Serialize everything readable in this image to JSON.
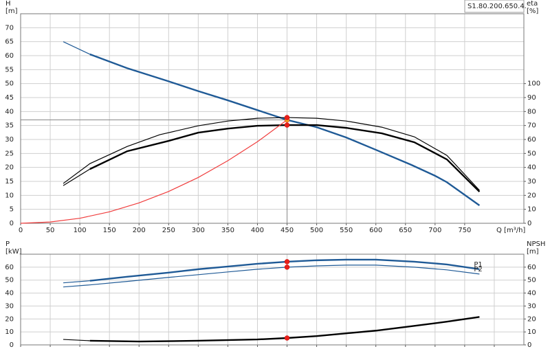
{
  "chart_data": [
    {
      "type": "line",
      "annotation": "S1.80.200.650.4.",
      "ylabel": "H",
      "yunit": "[m]",
      "y2label": "eta",
      "y2unit": "[%]",
      "xlabel": "Q [m³/h]",
      "xlim": [
        0,
        850
      ],
      "xticks": [
        0,
        50,
        100,
        150,
        200,
        250,
        300,
        350,
        400,
        450,
        500,
        550,
        600,
        650,
        700,
        750
      ],
      "xtick_labels": true,
      "ylim": [
        0,
        75
      ],
      "yticks": [
        0,
        5,
        10,
        15,
        20,
        25,
        30,
        35,
        40,
        45,
        50,
        55,
        60,
        65,
        70
      ],
      "y2lim": [
        0,
        150
      ],
      "y2ticks": [
        0,
        10,
        20,
        30,
        40,
        50,
        60,
        70,
        80,
        90,
        100
      ],
      "grid": true,
      "crosshair": true,
      "series": [
        {
          "color": "#1f5a96",
          "width": 1,
          "x": [
            72,
            117
          ],
          "values": [
            65,
            60.5
          ]
        },
        {
          "color": "#1f5a96",
          "width": 2,
          "x": [
            117,
            180,
            250,
            300,
            350,
            400,
            450,
            500,
            550,
            600,
            660,
            700,
            720,
            775
          ],
          "values": [
            60.5,
            55.5,
            50.8,
            47.3,
            44,
            40.5,
            37,
            34.4,
            30.7,
            26.3,
            20.9,
            17,
            14.7,
            6.4
          ]
        },
        {
          "color": "#000000",
          "width": 1,
          "axis": "y2",
          "x": [
            72,
            117,
            180,
            235,
            300,
            350,
            400,
            450,
            500,
            550,
            610,
            665,
            720,
            775
          ],
          "values": [
            28.5,
            42.7,
            55,
            63.4,
            69.8,
            73.2,
            75.2,
            75.7,
            75.2,
            73.2,
            68.8,
            61.9,
            48.6,
            23.6
          ]
        },
        {
          "color": "#000000",
          "width": 1,
          "axis": "y2",
          "x": [
            72,
            117
          ],
          "values": [
            27,
            38.8
          ]
        },
        {
          "color": "#000000",
          "width": 2,
          "axis": "y2",
          "x": [
            117,
            180,
            250,
            300,
            350,
            400,
            450,
            500,
            550,
            610,
            665,
            720,
            775
          ],
          "values": [
            38.8,
            51.6,
            59,
            64.9,
            67.8,
            69.8,
            70.3,
            70.3,
            68.3,
            64.4,
            58,
            45.7,
            22.6
          ]
        },
        {
          "color": "#f03c3c",
          "width": 1,
          "x": [
            0,
            50,
            100,
            150,
            200,
            250,
            300,
            350,
            400,
            450
          ],
          "values": [
            0,
            0.46,
            1.8,
            4.1,
            7.3,
            11.4,
            16.4,
            22.4,
            29.2,
            37
          ]
        }
      ],
      "markers": [
        {
          "x": 450,
          "y": 37,
          "color": "#f5a623"
        },
        {
          "x": 450,
          "y": 75.7,
          "axis": "y2",
          "color": "#e8201a"
        },
        {
          "x": 450,
          "y": 70.3,
          "axis": "y2",
          "color": "#e8201a"
        }
      ]
    },
    {
      "type": "line",
      "ylabel": "P",
      "yunit": "[kW]",
      "y2label": "NPSH",
      "y2unit": "[m]",
      "xlim": [
        0,
        850
      ],
      "xticks": [
        0,
        50,
        100,
        150,
        200,
        250,
        300,
        350,
        400,
        450,
        500,
        550,
        600,
        650,
        700,
        750,
        800
      ],
      "xtick_labels": false,
      "ylim": [
        0,
        70
      ],
      "yticks": [
        0,
        10,
        20,
        30,
        40,
        50,
        60
      ],
      "y2lim": [
        0,
        70
      ],
      "y2ticks": [
        0,
        10,
        20,
        30,
        40,
        50,
        60
      ],
      "grid": true,
      "crosshair": false,
      "series": [
        {
          "color": "#1f5a96",
          "width": 1,
          "x": [
            72,
            117
          ],
          "values": [
            47.9,
            49.5
          ]
        },
        {
          "name": "P1",
          "color": "#1f5a96",
          "width": 2,
          "x": [
            117,
            180,
            250,
            300,
            350,
            400,
            450,
            500,
            550,
            600,
            665,
            720,
            775
          ],
          "values": [
            49.5,
            52.6,
            55.8,
            58.4,
            60.5,
            62.6,
            64.2,
            65.3,
            65.8,
            65.8,
            64.2,
            62.1,
            58.4
          ]
        },
        {
          "name": "P2",
          "color": "#1f5a96",
          "width": 1,
          "x": [
            72,
            117,
            180,
            250,
            300,
            350,
            400,
            450,
            500,
            550,
            600,
            665,
            720,
            775
          ],
          "values": [
            44.7,
            46.3,
            49,
            52.1,
            54.2,
            56.3,
            58.4,
            60,
            61,
            61.6,
            61.6,
            60,
            57.9,
            54.7
          ]
        },
        {
          "color": "#000000",
          "width": 1,
          "axis": "y2",
          "x": [
            72,
            117
          ],
          "values": [
            4.2,
            3.2
          ]
        },
        {
          "color": "#000000",
          "width": 2,
          "axis": "y2",
          "x": [
            117,
            200,
            300,
            400,
            450,
            500,
            550,
            600,
            665,
            720,
            775
          ],
          "values": [
            3.2,
            2.6,
            3.2,
            4.2,
            5.3,
            6.8,
            8.9,
            11,
            14.7,
            17.9,
            21.6
          ]
        }
      ],
      "markers": [
        {
          "x": 450,
          "y": 64.2,
          "color": "#e8201a"
        },
        {
          "x": 450,
          "y": 60,
          "color": "#e8201a"
        },
        {
          "x": 450,
          "y": 5.3,
          "axis": "y2",
          "color": "#e8201a"
        }
      ]
    }
  ]
}
